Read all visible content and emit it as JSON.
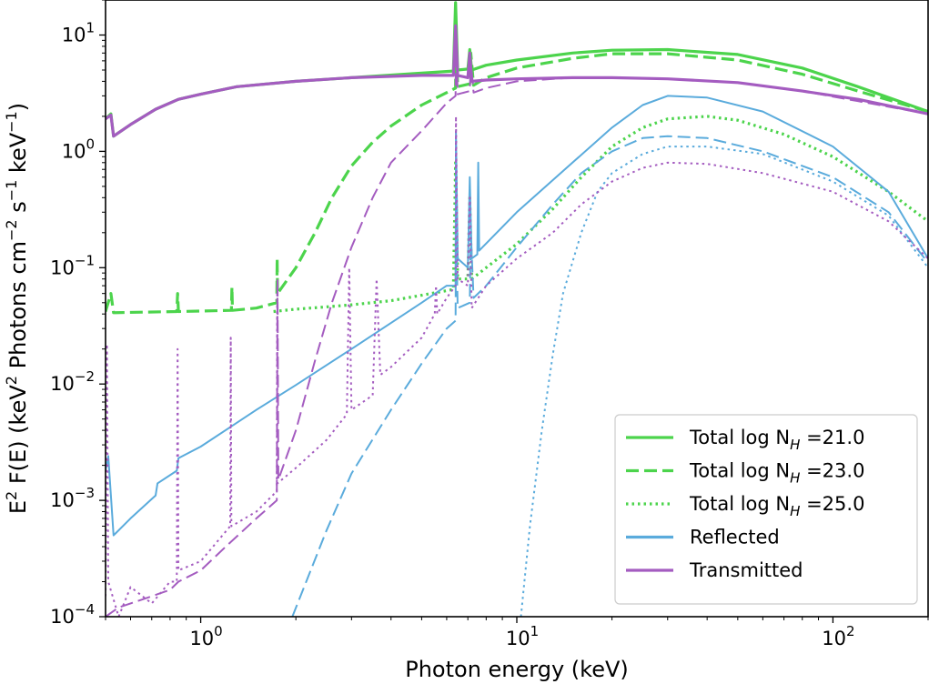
{
  "chart_data": {
    "type": "line",
    "xlabel": "Photon energy (keV)",
    "ylabel_parts": [
      "E",
      "2",
      " F(E) (keV",
      "2",
      " Photons cm",
      "−2",
      " s",
      "−1",
      " keV",
      "−1",
      ")"
    ],
    "xscale": "log",
    "yscale": "log",
    "xlim": [
      0.5,
      200
    ],
    "ylim": [
      0.0001,
      20
    ],
    "xticks": [
      {
        "value": 1,
        "base": "10",
        "exp": "0"
      },
      {
        "value": 10,
        "base": "10",
        "exp": "1"
      },
      {
        "value": 100,
        "base": "10",
        "exp": "2"
      }
    ],
    "yticks": [
      {
        "value": 0.0001,
        "base": "10",
        "exp": "−4"
      },
      {
        "value": 0.001,
        "base": "10",
        "exp": "−3"
      },
      {
        "value": 0.01,
        "base": "10",
        "exp": "−2"
      },
      {
        "value": 0.1,
        "base": "10",
        "exp": "−1"
      },
      {
        "value": 1,
        "base": "10",
        "exp": "0"
      },
      {
        "value": 10,
        "base": "10",
        "exp": "1"
      }
    ],
    "legend": {
      "location": "lower right",
      "entries": [
        {
          "key": "total21",
          "prefix": "Total log N",
          "sub": "H",
          "suffix": " =21.0"
        },
        {
          "key": "total23",
          "prefix": "Total log N",
          "sub": "H",
          "suffix": " =23.0"
        },
        {
          "key": "total25",
          "prefix": "Total log N",
          "sub": "H",
          "suffix": " =25.0"
        },
        {
          "key": "reflected",
          "prefix": "Reflected",
          "sub": "",
          "suffix": ""
        },
        {
          "key": "transmitted",
          "prefix": "Transmitted",
          "sub": "",
          "suffix": ""
        }
      ]
    },
    "series": [
      {
        "name": "Total log NH =21.0",
        "group": "total21",
        "color": "#4cd44c",
        "dash": "solid",
        "width": 3.2,
        "points": [
          [
            0.5,
            1.9
          ],
          [
            0.52,
            2.1
          ],
          [
            0.53,
            1.35
          ],
          [
            0.6,
            1.7
          ],
          [
            0.72,
            2.3
          ],
          [
            0.85,
            2.8
          ],
          [
            1.0,
            3.1
          ],
          [
            1.3,
            3.6
          ],
          [
            2,
            4.0
          ],
          [
            3,
            4.3
          ],
          [
            5,
            4.7
          ],
          [
            6.3,
            4.9
          ],
          [
            6.4,
            19
          ],
          [
            6.5,
            5.0
          ],
          [
            7,
            5.1
          ],
          [
            7.1,
            7.5
          ],
          [
            7.2,
            5.0
          ],
          [
            8,
            5.5
          ],
          [
            10,
            6.1
          ],
          [
            15,
            7.0
          ],
          [
            20,
            7.4
          ],
          [
            30,
            7.5
          ],
          [
            50,
            6.8
          ],
          [
            80,
            5.2
          ],
          [
            120,
            3.6
          ],
          [
            200,
            2.2
          ]
        ]
      },
      {
        "name": "Total log NH =23.0",
        "group": "total23",
        "color": "#4cd44c",
        "dash": "long",
        "width": 3.2,
        "points": [
          [
            0.5,
            0.042
          ],
          [
            0.52,
            0.06
          ],
          [
            0.53,
            0.041
          ],
          [
            0.84,
            0.042
          ],
          [
            0.845,
            0.06
          ],
          [
            0.85,
            0.042
          ],
          [
            1.25,
            0.043
          ],
          [
            1.255,
            0.068
          ],
          [
            1.26,
            0.043
          ],
          [
            1.5,
            0.045
          ],
          [
            1.74,
            0.05
          ],
          [
            1.745,
            0.12
          ],
          [
            1.75,
            0.06
          ],
          [
            2,
            0.1
          ],
          [
            2.3,
            0.2
          ],
          [
            2.6,
            0.4
          ],
          [
            3,
            0.75
          ],
          [
            3.5,
            1.2
          ],
          [
            4,
            1.65
          ],
          [
            5,
            2.5
          ],
          [
            6,
            3.2
          ],
          [
            6.4,
            3.5
          ],
          [
            6.42,
            12
          ],
          [
            6.5,
            3.6
          ],
          [
            7.1,
            3.8
          ],
          [
            7.15,
            7
          ],
          [
            7.3,
            3.7
          ],
          [
            8,
            4.3
          ],
          [
            10,
            5.2
          ],
          [
            15,
            6.3
          ],
          [
            20,
            6.9
          ],
          [
            30,
            6.9
          ],
          [
            50,
            6.1
          ],
          [
            80,
            4.6
          ],
          [
            120,
            3.3
          ],
          [
            200,
            2.2
          ]
        ]
      },
      {
        "name": "Total log NH =25.0",
        "group": "total25",
        "color": "#4cd44c",
        "dash": "dot",
        "width": 3.2,
        "points": [
          [
            1.7,
            0.042
          ],
          [
            2,
            0.044
          ],
          [
            2.5,
            0.046
          ],
          [
            3,
            0.048
          ],
          [
            4,
            0.052
          ],
          [
            5,
            0.058
          ],
          [
            6.3,
            0.065
          ],
          [
            6.4,
            0.8
          ],
          [
            6.5,
            0.08
          ],
          [
            7,
            0.08
          ],
          [
            7.1,
            0.4
          ],
          [
            7.2,
            0.08
          ],
          [
            8,
            0.1
          ],
          [
            10,
            0.16
          ],
          [
            13,
            0.32
          ],
          [
            16,
            0.6
          ],
          [
            20,
            1.1
          ],
          [
            25,
            1.6
          ],
          [
            30,
            1.9
          ],
          [
            40,
            2.0
          ],
          [
            50,
            1.85
          ],
          [
            70,
            1.4
          ],
          [
            100,
            0.9
          ],
          [
            150,
            0.45
          ],
          [
            200,
            0.25
          ]
        ]
      },
      {
        "name": "Reflected",
        "group": "reflected",
        "color": "#5aabdc",
        "dash": "solid",
        "width": 2,
        "points": [
          [
            0.5,
            0.0018
          ],
          [
            0.51,
            0.0024
          ],
          [
            0.53,
            0.0005
          ],
          [
            0.6,
            0.0007
          ],
          [
            0.72,
            0.0011
          ],
          [
            0.73,
            0.0014
          ],
          [
            0.84,
            0.0018
          ],
          [
            0.85,
            0.0023
          ],
          [
            1,
            0.0029
          ],
          [
            1.5,
            0.006
          ],
          [
            2,
            0.0098
          ],
          [
            3,
            0.02
          ],
          [
            5,
            0.05
          ],
          [
            6,
            0.07
          ],
          [
            6.4,
            0.07
          ],
          [
            6.42,
            1.5
          ],
          [
            6.5,
            0.12
          ],
          [
            7,
            0.1
          ],
          [
            7.1,
            0.6
          ],
          [
            7.2,
            0.12
          ],
          [
            7.5,
            0.13
          ],
          [
            7.55,
            0.8
          ],
          [
            7.6,
            0.14
          ],
          [
            10,
            0.3
          ],
          [
            15,
            0.8
          ],
          [
            20,
            1.6
          ],
          [
            25,
            2.5
          ],
          [
            30,
            3.0
          ],
          [
            40,
            2.9
          ],
          [
            60,
            2.2
          ],
          [
            100,
            1.1
          ],
          [
            150,
            0.45
          ],
          [
            200,
            0.12
          ]
        ]
      },
      {
        "name": "Reflected log NH =23.0",
        "group": "reflected",
        "color": "#5aabdc",
        "dash": "long",
        "width": 2,
        "points": [
          [
            1.95,
            0.0001
          ],
          [
            2.5,
            0.00055
          ],
          [
            3,
            0.0017
          ],
          [
            4,
            0.006
          ],
          [
            5,
            0.015
          ],
          [
            6,
            0.03
          ],
          [
            6.4,
            0.035
          ],
          [
            6.42,
            0.3
          ],
          [
            6.5,
            0.045
          ],
          [
            7.1,
            0.05
          ],
          [
            7.15,
            0.2
          ],
          [
            7.3,
            0.055
          ],
          [
            8,
            0.07
          ],
          [
            10,
            0.15
          ],
          [
            13,
            0.35
          ],
          [
            16,
            0.65
          ],
          [
            20,
            1.0
          ],
          [
            25,
            1.3
          ],
          [
            30,
            1.35
          ],
          [
            40,
            1.3
          ],
          [
            60,
            1.0
          ],
          [
            100,
            0.6
          ],
          [
            150,
            0.3
          ],
          [
            200,
            0.11
          ]
        ]
      },
      {
        "name": "Reflected log NH =25.0",
        "group": "reflected",
        "color": "#5aabdc",
        "dash": "dot",
        "width": 2,
        "points": [
          [
            10.3,
            0.0001
          ],
          [
            11,
            0.0006
          ],
          [
            12,
            0.004
          ],
          [
            13,
            0.018
          ],
          [
            14,
            0.06
          ],
          [
            16,
            0.2
          ],
          [
            18,
            0.45
          ],
          [
            20,
            0.65
          ],
          [
            25,
            0.95
          ],
          [
            30,
            1.1
          ],
          [
            40,
            1.1
          ],
          [
            60,
            0.95
          ],
          [
            100,
            0.55
          ],
          [
            150,
            0.28
          ],
          [
            200,
            0.1
          ]
        ]
      },
      {
        "name": "Transmitted",
        "group": "transmitted",
        "color": "#a45cc0",
        "dash": "solid",
        "width": 3.2,
        "points": [
          [
            0.5,
            1.9
          ],
          [
            0.52,
            2.05
          ],
          [
            0.53,
            1.35
          ],
          [
            0.6,
            1.7
          ],
          [
            0.72,
            2.3
          ],
          [
            0.85,
            2.8
          ],
          [
            1.0,
            3.1
          ],
          [
            1.3,
            3.6
          ],
          [
            2,
            4.0
          ],
          [
            3,
            4.3
          ],
          [
            5,
            4.5
          ],
          [
            6.3,
            4.5
          ],
          [
            6.4,
            12
          ],
          [
            6.5,
            4.5
          ],
          [
            7,
            4.3
          ],
          [
            7.1,
            7
          ],
          [
            7.2,
            4.0
          ],
          [
            8,
            4.1
          ],
          [
            10,
            4.2
          ],
          [
            15,
            4.3
          ],
          [
            20,
            4.3
          ],
          [
            30,
            4.2
          ],
          [
            50,
            3.9
          ],
          [
            80,
            3.3
          ],
          [
            120,
            2.8
          ],
          [
            200,
            2.1
          ]
        ]
      },
      {
        "name": "Transmitted log NH =23.0",
        "group": "transmitted",
        "color": "#a45cc0",
        "dash": "long",
        "width": 2,
        "points": [
          [
            0.5,
            0.0001
          ],
          [
            0.55,
            0.00012
          ],
          [
            0.6,
            0.00013
          ],
          [
            0.7,
            0.00015
          ],
          [
            0.8,
            0.00017
          ],
          [
            0.85,
            0.0002
          ],
          [
            1,
            0.00025
          ],
          [
            1.2,
            0.0004
          ],
          [
            1.5,
            0.0007
          ],
          [
            1.74,
            0.001
          ],
          [
            1.75,
            0.08
          ],
          [
            1.76,
            0.0015
          ],
          [
            2,
            0.004
          ],
          [
            2.3,
            0.016
          ],
          [
            2.6,
            0.05
          ],
          [
            3,
            0.15
          ],
          [
            3.5,
            0.4
          ],
          [
            4,
            0.8
          ],
          [
            5,
            1.5
          ],
          [
            6,
            2.6
          ],
          [
            6.4,
            3.0
          ],
          [
            6.42,
            12
          ],
          [
            6.5,
            3.1
          ],
          [
            7.1,
            3.3
          ],
          [
            7.15,
            6
          ],
          [
            7.3,
            3.2
          ],
          [
            8,
            3.5
          ],
          [
            10,
            4.0
          ],
          [
            15,
            4.3
          ],
          [
            20,
            4.3
          ],
          [
            30,
            4.2
          ],
          [
            50,
            3.9
          ],
          [
            80,
            3.3
          ],
          [
            120,
            2.7
          ],
          [
            200,
            2.1
          ]
        ]
      },
      {
        "name": "Transmitted log NH =25.0",
        "group": "transmitted",
        "color": "#a45cc0",
        "dash": "dot",
        "width": 2,
        "points": [
          [
            0.5,
            0.00015
          ],
          [
            0.505,
            0.022
          ],
          [
            0.51,
            0.0002
          ],
          [
            0.55,
            0.0001
          ],
          [
            0.6,
            0.00018
          ],
          [
            0.7,
            0.00013
          ],
          [
            0.8,
            0.0002
          ],
          [
            0.84,
            0.0002
          ],
          [
            0.845,
            0.02
          ],
          [
            0.85,
            0.00025
          ],
          [
            1,
            0.0003
          ],
          [
            1.24,
            0.0006
          ],
          [
            1.245,
            0.025
          ],
          [
            1.25,
            0.0006
          ],
          [
            1.5,
            0.0008
          ],
          [
            1.74,
            0.0012
          ],
          [
            1.745,
            0.07
          ],
          [
            1.75,
            0.0014
          ],
          [
            2,
            0.0019
          ],
          [
            2.5,
            0.0033
          ],
          [
            2.9,
            0.0055
          ],
          [
            2.95,
            0.1
          ],
          [
            3,
            0.006
          ],
          [
            3.5,
            0.008
          ],
          [
            3.6,
            0.08
          ],
          [
            3.7,
            0.012
          ],
          [
            4,
            0.014
          ],
          [
            5,
            0.025
          ],
          [
            5.5,
            0.04
          ],
          [
            5.55,
            0.07
          ],
          [
            5.6,
            0.04
          ],
          [
            6,
            0.055
          ],
          [
            6.4,
            0.07
          ],
          [
            6.42,
            2.0
          ],
          [
            6.5,
            0.08
          ],
          [
            7,
            0.07
          ],
          [
            7.1,
            0.4
          ],
          [
            7.2,
            0.045
          ],
          [
            8,
            0.07
          ],
          [
            10,
            0.12
          ],
          [
            13,
            0.2
          ],
          [
            16,
            0.35
          ],
          [
            20,
            0.55
          ],
          [
            25,
            0.72
          ],
          [
            30,
            0.8
          ],
          [
            40,
            0.78
          ],
          [
            60,
            0.65
          ],
          [
            100,
            0.45
          ],
          [
            150,
            0.25
          ],
          [
            200,
            0.12
          ]
        ]
      }
    ]
  }
}
